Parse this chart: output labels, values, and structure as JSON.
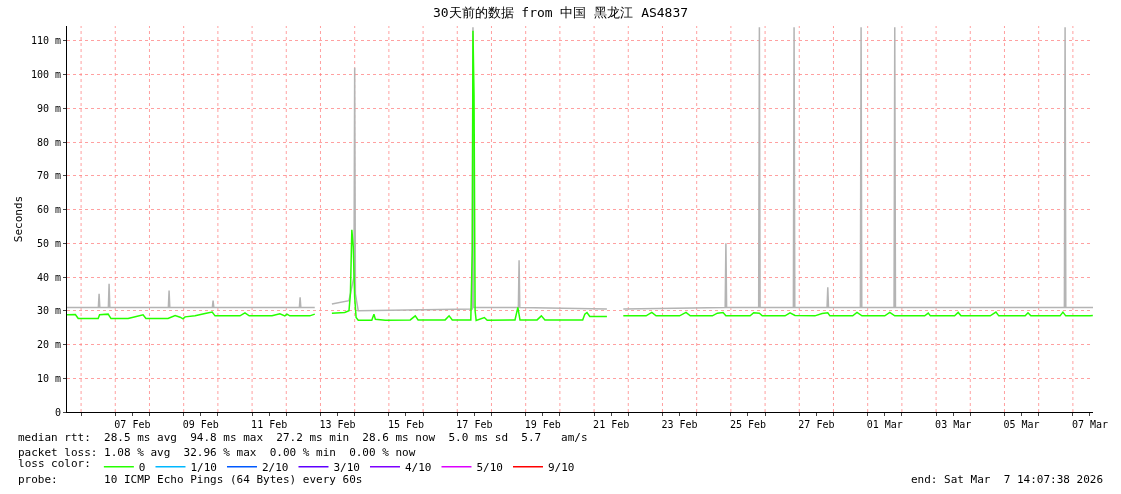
{
  "chart_data": {
    "type": "line",
    "title": "30天前的数据 from 中国 黑龙江 AS4837",
    "ylabel": "Seconds",
    "legend_title": "loss color:",
    "legend": "bottom",
    "grid": true,
    "marker": "none",
    "line_style": "solid",
    "xlim": [
      "2026-02-05T14:07",
      "2026-03-07T14:07"
    ],
    "ylim": [
      0,
      114.4
    ],
    "yticks": [
      0,
      {
        "value": 10,
        "label": "10 m"
      },
      {
        "value": 20,
        "label": "20 m"
      },
      {
        "value": 30,
        "label": "30 m"
      },
      {
        "value": 40,
        "label": "40 m"
      },
      {
        "value": 50,
        "label": "50 m"
      },
      {
        "value": 60,
        "label": "60 m"
      },
      {
        "value": 70,
        "label": "70 m"
      },
      {
        "value": 80,
        "label": "80 m"
      },
      {
        "value": 90,
        "label": "90 m"
      },
      {
        "value": 100,
        "label": "100 m"
      },
      {
        "value": 110,
        "label": "110 m"
      }
    ],
    "xticks": [
      {
        "value": "2026-02-06",
        "label": null
      },
      {
        "value": "2026-02-07",
        "label": null
      },
      {
        "value": "2026-02-07T12:00",
        "label": "07 Feb"
      },
      {
        "value": "2026-02-08",
        "label": null
      },
      {
        "value": "2026-02-09",
        "label": null
      },
      {
        "value": "2026-02-09T12:00",
        "label": "09 Feb"
      },
      {
        "value": "2026-02-10",
        "label": null
      },
      {
        "value": "2026-02-11",
        "label": null
      },
      {
        "value": "2026-02-11T12:00",
        "label": "11 Feb"
      },
      {
        "value": "2026-02-12",
        "label": null
      },
      {
        "value": "2026-02-13",
        "label": null
      },
      {
        "value": "2026-02-13T12:00",
        "label": "13 Feb"
      },
      {
        "value": "2026-02-14",
        "label": null
      },
      {
        "value": "2026-02-15",
        "label": null
      },
      {
        "value": "2026-02-15T12:00",
        "label": "15 Feb"
      },
      {
        "value": "2026-02-16",
        "label": null
      },
      {
        "value": "2026-02-17",
        "label": null
      },
      {
        "value": "2026-02-17T12:00",
        "label": "17 Feb"
      },
      {
        "value": "2026-02-18",
        "label": null
      },
      {
        "value": "2026-02-19",
        "label": null
      },
      {
        "value": "2026-02-19T12:00",
        "label": "19 Feb"
      },
      {
        "value": "2026-02-20",
        "label": null
      },
      {
        "value": "2026-02-21",
        "label": null
      },
      {
        "value": "2026-02-21T12:00",
        "label": "21 Feb"
      },
      {
        "value": "2026-02-22",
        "label": null
      },
      {
        "value": "2026-02-23",
        "label": null
      },
      {
        "value": "2026-02-23T12:00",
        "label": "23 Feb"
      },
      {
        "value": "2026-02-24",
        "label": null
      },
      {
        "value": "2026-02-25",
        "label": null
      },
      {
        "value": "2026-02-25T12:00",
        "label": "25 Feb"
      },
      {
        "value": "2026-02-26",
        "label": null
      },
      {
        "value": "2026-02-27",
        "label": null
      },
      {
        "value": "2026-02-27T12:00",
        "label": "27 Feb"
      },
      {
        "value": "2026-02-28",
        "label": null
      },
      {
        "value": "2026-03-01",
        "label": null
      },
      {
        "value": "2026-03-01T12:00",
        "label": "01 Mar"
      },
      {
        "value": "2026-03-02",
        "label": null
      },
      {
        "value": "2026-03-03",
        "label": null
      },
      {
        "value": "2026-03-03T12:00",
        "label": "03 Mar"
      },
      {
        "value": "2026-03-04",
        "label": null
      },
      {
        "value": "2026-03-05",
        "label": null
      },
      {
        "value": "2026-03-05T12:00",
        "label": "05 Mar"
      },
      {
        "value": "2026-03-06",
        "label": null
      },
      {
        "value": "2026-03-07",
        "label": null
      },
      {
        "value": "2026-03-07T12:00",
        "label": "07 Mar"
      }
    ],
    "series": [
      {
        "color": "#b4b4b4",
        "x": [
          "2026-02-05T14:07",
          "2026-02-06T12:08",
          "2026-02-06T12:38",
          "2026-02-06T13:08",
          "2026-02-06T19:09",
          "2026-02-06T19:39",
          "2026-02-06T20:09",
          "2026-02-08T13:15",
          "2026-02-08T13:45",
          "2026-02-08T14:15",
          "2026-02-09T20:08",
          "2026-02-09T20:38",
          "2026-02-09T21:08",
          "2026-02-12T09:12",
          "2026-02-12T09:42",
          "2026-02-12T10:12",
          "2026-02-12T20:00",
          "2026-02-13T02:00",
          "2026-02-13T08:00",
          "2026-02-13T20:00",
          "2026-02-13T23:30",
          "2026-02-14T00:00",
          "2026-02-14T00:30",
          "2026-02-14T02:30",
          "2026-02-17T10:30",
          "2026-02-17T11:00",
          "2026-02-17T11:30",
          "2026-02-18T18:52",
          "2026-02-18T19:22",
          "2026-02-18T19:52",
          "2026-02-21T09:00",
          "2026-02-21T14:30",
          "2026-02-21T20:30",
          "2026-02-24T20:00",
          "2026-02-24T20:30",
          "2026-02-24T21:00",
          "2026-02-25T19:30",
          "2026-02-25T20:00",
          "2026-02-25T20:30",
          "2026-02-26T19:51",
          "2026-02-26T20:21",
          "2026-02-26T20:51",
          "2026-02-27T19:30",
          "2026-02-27T20:00",
          "2026-02-27T20:30",
          "2026-02-28T18:52",
          "2026-02-28T19:22",
          "2026-02-28T19:52",
          "2026-03-01T18:30",
          "2026-03-01T19:00",
          "2026-03-01T19:30",
          "2026-03-06T18:02",
          "2026-03-06T18:32",
          "2026-03-06T19:02",
          "2026-03-07T14:07"
        ],
        "values": [
          31,
          31,
          35,
          31,
          31,
          38,
          31,
          31,
          36,
          31,
          31,
          33,
          31,
          31,
          34,
          31,
          31,
          null,
          32,
          33,
          40,
          102,
          35,
          30,
          30.5,
          114,
          31,
          31,
          45,
          31,
          30.5,
          null,
          30.5,
          31,
          50,
          31,
          31,
          114,
          31,
          31,
          114,
          31,
          31,
          37,
          31,
          31,
          114,
          31,
          31,
          114,
          31,
          31,
          114,
          31,
          31
        ]
      },
      {
        "name": "0",
        "color": "#26ff00",
        "x": [
          "2026-02-05T14:07",
          "2026-02-05T20:00",
          "2026-02-05T22:00",
          "2026-02-06T12:00",
          "2026-02-06T13:00",
          "2026-02-06T19:00",
          "2026-02-06T21:00",
          "2026-02-07T09:00",
          "2026-02-07T14:00",
          "2026-02-07T19:30",
          "2026-02-07T21:30",
          "2026-02-08T13:00",
          "2026-02-08T18:00",
          "2026-02-08T21:30",
          "2026-02-08T23:30",
          "2026-02-09T01:00",
          "2026-02-09T08:00",
          "2026-02-09T15:00",
          "2026-02-09T20:00",
          "2026-02-09T22:00",
          "2026-02-10T15:30",
          "2026-02-10T19:00",
          "2026-02-10T22:00",
          "2026-02-11T14:00",
          "2026-02-11T19:30",
          "2026-02-11T23:00",
          "2026-02-12T00:30",
          "2026-02-12T02:30",
          "2026-02-12T16:30",
          "2026-02-12T20:00",
          "2026-02-13T02:00",
          "2026-02-13T08:00",
          "2026-02-13T17:00",
          "2026-02-13T20:00",
          "2026-02-13T21:00",
          "2026-02-13T22:00",
          "2026-02-13T23:00",
          "2026-02-14T00:00",
          "2026-02-14T01:00",
          "2026-02-14T02:30",
          "2026-02-14T12:00",
          "2026-02-14T13:30",
          "2026-02-14T14:30",
          "2026-02-14T21:30",
          "2026-02-15T15:00",
          "2026-02-15T18:30",
          "2026-02-15T20:30",
          "2026-02-16T15:30",
          "2026-02-16T18:15",
          "2026-02-16T20:30",
          "2026-02-17T09:30",
          "2026-02-17T10:30",
          "2026-02-17T11:00",
          "2026-02-17T11:45",
          "2026-02-17T12:30",
          "2026-02-17T13:15",
          "2026-02-17T19:00",
          "2026-02-17T21:00",
          "2026-02-18T16:30",
          "2026-02-18T18:30",
          "2026-02-18T20:00",
          "2026-02-19T08:00",
          "2026-02-19T11:00",
          "2026-02-19T13:30",
          "2026-02-20T16:00",
          "2026-02-20T17:30",
          "2026-02-20T19:00",
          "2026-02-20T21:00",
          "2026-02-21T09:00",
          "2026-02-21T14:30",
          "2026-02-21T20:30",
          "2026-02-22T12:30",
          "2026-02-22T16:30",
          "2026-02-22T19:30",
          "2026-02-23T12:00",
          "2026-02-23T16:30",
          "2026-02-23T19:30",
          "2026-02-24T11:00",
          "2026-02-24T14:30",
          "2026-02-24T18:30",
          "2026-02-24T20:30",
          "2026-02-25T13:30",
          "2026-02-25T16:00",
          "2026-02-25T20:00",
          "2026-02-25T22:00",
          "2026-02-26T14:00",
          "2026-02-26T17:30",
          "2026-02-26T21:00",
          "2026-02-27T11:00",
          "2026-02-27T16:00",
          "2026-02-27T20:00",
          "2026-02-27T21:30",
          "2026-02-28T13:30",
          "2026-02-28T16:30",
          "2026-02-28T20:00",
          "2026-03-01T12:00",
          "2026-03-01T15:30",
          "2026-03-01T19:00",
          "2026-03-02T16:00",
          "2026-03-02T18:30",
          "2026-03-02T20:00",
          "2026-03-03T13:00",
          "2026-03-03T15:30",
          "2026-03-03T17:30",
          "2026-03-04T14:00",
          "2026-03-04T18:00",
          "2026-03-04T20:00",
          "2026-03-05T14:30",
          "2026-03-05T16:30",
          "2026-03-05T18:30",
          "2026-03-06T15:00",
          "2026-03-06T17:00",
          "2026-03-06T19:00",
          "2026-03-07T12:00",
          "2026-03-07T14:00"
        ],
        "values": [
          28.8,
          28.9,
          27.7,
          27.7,
          28.8,
          29.0,
          27.7,
          27.7,
          28.2,
          28.8,
          27.7,
          27.7,
          28.6,
          28.1,
          27.6,
          28.2,
          28.5,
          29.2,
          29.6,
          28.5,
          28.5,
          29.4,
          28.5,
          28.5,
          29.1,
          28.5,
          29.0,
          28.5,
          28.5,
          29.0,
          null,
          29.3,
          29.5,
          30.0,
          35,
          54,
          49,
          34,
          28.0,
          27.2,
          27.2,
          29,
          27.5,
          27.2,
          27.3,
          28.5,
          27.3,
          27.3,
          28.5,
          27.3,
          27.3,
          48,
          113,
          94,
          30,
          27.1,
          28.0,
          27.2,
          27.3,
          31,
          27.3,
          27.3,
          28.5,
          27.3,
          27.3,
          29,
          29.5,
          28.3,
          28.3,
          null,
          28.5,
          28.5,
          29.5,
          28.5,
          28.5,
          29.5,
          28.5,
          28.5,
          29.3,
          29.5,
          28.5,
          28.5,
          29.4,
          29.3,
          28.5,
          28.5,
          29.4,
          28.6,
          28.5,
          29.2,
          29.4,
          28.5,
          28.5,
          29.5,
          28.5,
          28.5,
          29.5,
          28.5,
          28.5,
          29.3,
          28.5,
          28.5,
          29.5,
          28.5,
          28.5,
          29.6,
          28.5,
          28.5,
          29.4,
          28.5,
          28.5,
          29.6,
          28.5,
          28.5,
          28.6
        ]
      },
      {
        "name": "1/10",
        "color": "#00b8ff"
      },
      {
        "name": "2/10",
        "color": "#0059ff"
      },
      {
        "name": "3/10",
        "color": "#5e00ff"
      },
      {
        "name": "4/10",
        "color": "#7e00ff"
      },
      {
        "name": "5/10",
        "color": "#dd00ff"
      },
      {
        "name": "9/10",
        "color": "#ff0000"
      }
    ],
    "annotations": [
      "median rtt:  28.5 ms avg  94.8 ms max  27.2 ms min  28.6 ms now  5.0 ms sd  5.7   am/s",
      "packet loss: 1.08 % avg  32.96 % max  0.00 % min  0.00 % now",
      "probe:       10 ICMP Echo Pings (64 Bytes) every 60s",
      "end: Sat Mar  7 14:07:38 2026"
    ]
  }
}
